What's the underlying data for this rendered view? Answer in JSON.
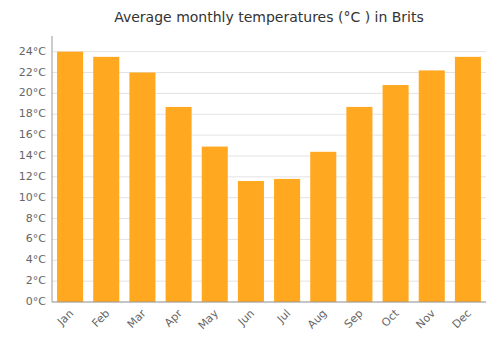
{
  "chart_data": {
    "type": "bar",
    "title": "Average monthly temperatures (°C ) in Brits",
    "categories": [
      "Jan",
      "Feb",
      "Mar",
      "Apr",
      "May",
      "Jun",
      "Jul",
      "Aug",
      "Sep",
      "Oct",
      "Nov",
      "Dec"
    ],
    "values": [
      24.0,
      23.5,
      22.0,
      18.7,
      14.9,
      11.6,
      11.8,
      14.4,
      18.7,
      20.8,
      22.2,
      23.5
    ],
    "color": "#FFA820",
    "ylim": [
      0,
      25.5
    ],
    "yticks": [
      {
        "value": 0,
        "label": "0°C"
      },
      {
        "value": 2,
        "label": "2°C"
      },
      {
        "value": 4,
        "label": "4°C"
      },
      {
        "value": 6,
        "label": "6°C"
      },
      {
        "value": 8,
        "label": "8°C"
      },
      {
        "value": 10,
        "label": "10°C"
      },
      {
        "value": 12,
        "label": "12°C"
      },
      {
        "value": 14,
        "label": "14°C"
      },
      {
        "value": 16,
        "label": "16°C"
      },
      {
        "value": 18,
        "label": "18°C"
      },
      {
        "value": 20,
        "label": "20°C"
      },
      {
        "value": 22,
        "label": "22°C"
      },
      {
        "value": 24,
        "label": "24°C"
      }
    ],
    "grid": true
  }
}
